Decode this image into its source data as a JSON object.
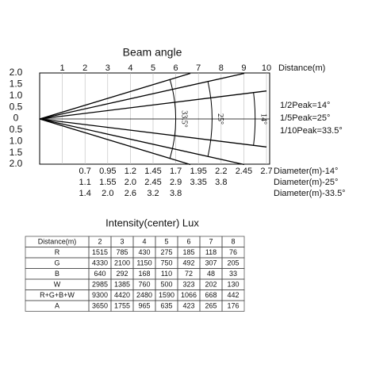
{
  "diagram": {
    "title": "Beam angle",
    "x_labels": [
      "1",
      "2",
      "3",
      "4",
      "5",
      "6",
      "7",
      "8",
      "9",
      "10"
    ],
    "x_axis_label": "Distance(m)",
    "y_labels": [
      "2.0",
      "1.5",
      "1.0",
      "0.5",
      "0",
      "0.5",
      "1.0",
      "1.5",
      "2.0"
    ],
    "beams": [
      {
        "label": "33.5°"
      },
      {
        "label": "25°"
      },
      {
        "label": "14°"
      }
    ],
    "legend": [
      "1/2Peak=14°",
      "1/5Peak=25°",
      "1/10Peak=33.5°"
    ],
    "diameters": [
      {
        "values": [
          "0.7",
          "0.95",
          "1.2",
          "1.45",
          "1.7",
          "1.95",
          "2.2",
          "2.45",
          "2.7"
        ],
        "label": "Diameter(m)-14°"
      },
      {
        "values": [
          "1.1",
          "1.55",
          "2.0",
          "2.45",
          "2.9",
          "3.35",
          "3.8"
        ],
        "label": "Diameter(m)-25°"
      },
      {
        "values": [
          "1.4",
          "2.0",
          "2.6",
          "3.2",
          "3.8"
        ],
        "label": "Diameter(m)-33.5°"
      }
    ]
  },
  "table": {
    "title": "Intensity(center) Lux",
    "header": [
      "Distance(m)",
      "2",
      "3",
      "4",
      "5",
      "6",
      "7",
      "8"
    ],
    "rows": [
      [
        "R",
        "1515",
        "785",
        "430",
        "275",
        "185",
        "118",
        "76"
      ],
      [
        "G",
        "4330",
        "2100",
        "1150",
        "750",
        "492",
        "307",
        "205"
      ],
      [
        "B",
        "640",
        "292",
        "168",
        "110",
        "72",
        "48",
        "33"
      ],
      [
        "W",
        "2985",
        "1385",
        "760",
        "500",
        "323",
        "202",
        "130"
      ],
      [
        "R+G+B+W",
        "9300",
        "4420",
        "2480",
        "1590",
        "1066",
        "668",
        "442"
      ],
      [
        "A",
        "3650",
        "1755",
        "965",
        "635",
        "423",
        "265",
        "176"
      ]
    ]
  }
}
